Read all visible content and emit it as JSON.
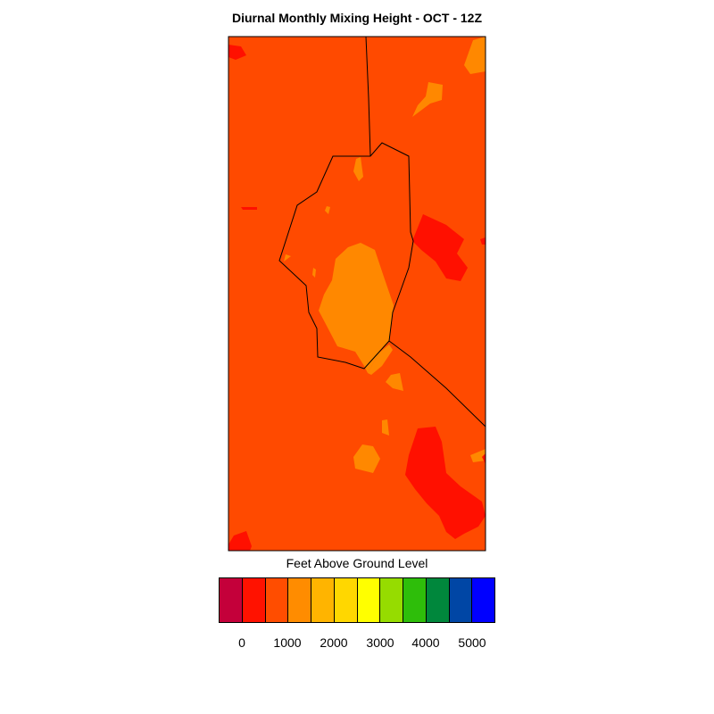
{
  "title": "Diurnal Monthly Mixing Height - OCT - 12Z",
  "legend": {
    "title": "Feet Above Ground Level",
    "colors": [
      "#c4003a",
      "#ff1200",
      "#ff4d00",
      "#ff8c00",
      "#ffb400",
      "#ffd700",
      "#ffff00",
      "#96dc00",
      "#2ebe0a",
      "#00873c",
      "#0046a5",
      "#0000ff"
    ],
    "tick_labels": [
      "0",
      "1000",
      "2000",
      "3000",
      "4000",
      "5000"
    ]
  },
  "map_colors": {
    "background": "#ff4a00",
    "low": "#ff1000",
    "mid": "#ff8800",
    "boundary": "#000000"
  }
}
